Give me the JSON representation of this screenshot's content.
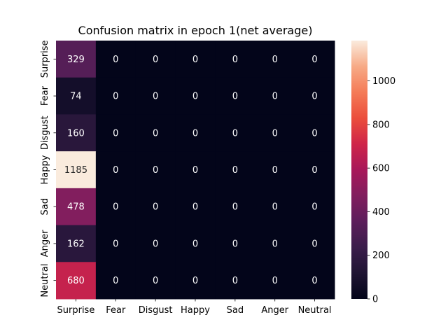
{
  "chart_data": {
    "type": "heatmap",
    "title": "Confusion matrix in epoch 1(net average)",
    "xlabel": "",
    "ylabel": "",
    "x_categories": [
      "Surprise",
      "Fear",
      "Disgust",
      "Happy",
      "Sad",
      "Anger",
      "Neutral"
    ],
    "y_categories": [
      "Surprise",
      "Fear",
      "Disgust",
      "Happy",
      "Sad",
      "Anger",
      "Neutral"
    ],
    "values": [
      [
        329,
        0,
        0,
        0,
        0,
        0,
        0
      ],
      [
        74,
        0,
        0,
        0,
        0,
        0,
        0
      ],
      [
        160,
        0,
        0,
        0,
        0,
        0,
        0
      ],
      [
        1185,
        0,
        0,
        0,
        0,
        0,
        0
      ],
      [
        478,
        0,
        0,
        0,
        0,
        0,
        0
      ],
      [
        162,
        0,
        0,
        0,
        0,
        0,
        0
      ],
      [
        680,
        0,
        0,
        0,
        0,
        0,
        0
      ]
    ],
    "colorbar": {
      "colormap": "rocket",
      "range": [
        0,
        1185
      ],
      "ticks": [
        0,
        200,
        400,
        600,
        800,
        1000
      ]
    },
    "annotations": true
  }
}
